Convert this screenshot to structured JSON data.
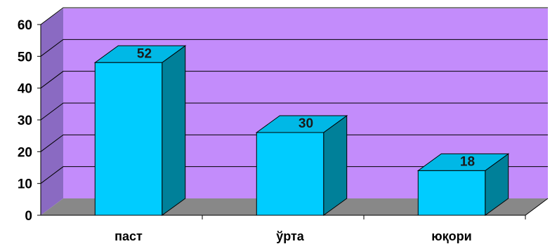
{
  "chart_data": {
    "type": "bar",
    "categories": [
      "паст",
      "ўрта",
      "юқори"
    ],
    "values": [
      52,
      30,
      18
    ],
    "data_labels": [
      "52",
      "30",
      "18"
    ],
    "title": "",
    "xlabel": "",
    "ylabel": "",
    "ylim": [
      0,
      60
    ],
    "yticks": [
      "0",
      "10",
      "20",
      "30",
      "40",
      "50",
      "60"
    ],
    "grid": true,
    "legend": "none",
    "three_d": true,
    "colors": {
      "back_wall": "#c38cfb",
      "side_wall": "#8a6ac2",
      "floor": "#888888",
      "grid_line": "#000000",
      "bar_front": "#00ccff",
      "bar_top": "#00b8e6",
      "bar_side": "#008099",
      "bar_edge": "#000000"
    }
  }
}
